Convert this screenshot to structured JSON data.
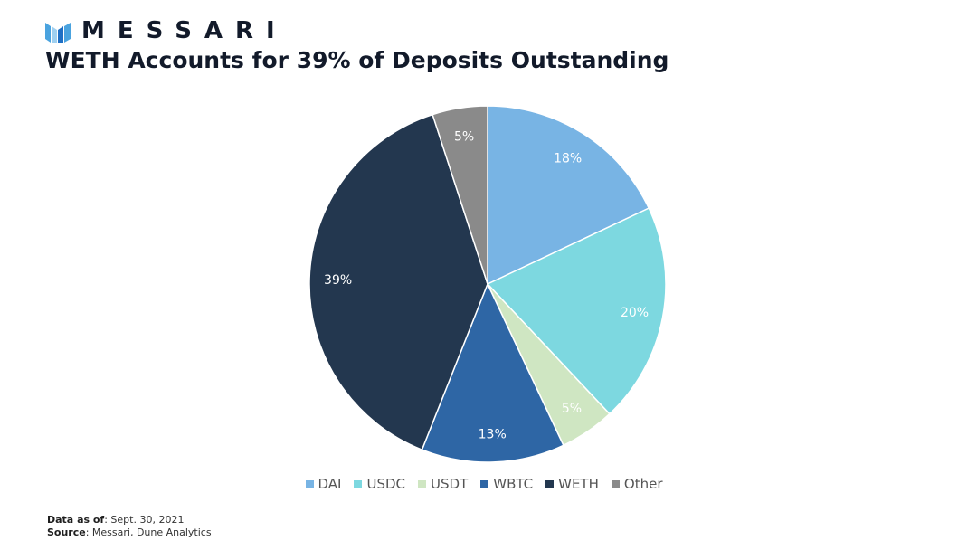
{
  "brand": {
    "name": "MESSARI",
    "logo_icon": "messari-logo-icon",
    "logo_colors": [
      "#1f6fc4",
      "#4aa3df",
      "#9fd0f0"
    ]
  },
  "title": "WETH Accounts for 39% of Deposits Outstanding",
  "chart_data": {
    "type": "pie",
    "title": "WETH Accounts for 39% of Deposits Outstanding",
    "legend_position": "bottom",
    "slices": [
      {
        "name": "DAI",
        "value": 18,
        "label": "18%",
        "color": "#78b4e4"
      },
      {
        "name": "USDC",
        "value": 20,
        "label": "20%",
        "color": "#7dd8e0"
      },
      {
        "name": "USDT",
        "value": 5,
        "label": "5%",
        "color": "#cfe6c2"
      },
      {
        "name": "WBTC",
        "value": 13,
        "label": "13%",
        "color": "#2e66a5"
      },
      {
        "name": "WETH",
        "value": 39,
        "label": "39%",
        "color": "#23374f"
      },
      {
        "name": "Other",
        "value": 5,
        "label": "5%",
        "color": "#8a8a8a"
      }
    ]
  },
  "footer": {
    "data_as_of_label": "Data as of",
    "data_as_of_value": ": Sept. 30, 2021",
    "source_label": "Source",
    "source_value": ": Messari, Dune Analytics"
  }
}
